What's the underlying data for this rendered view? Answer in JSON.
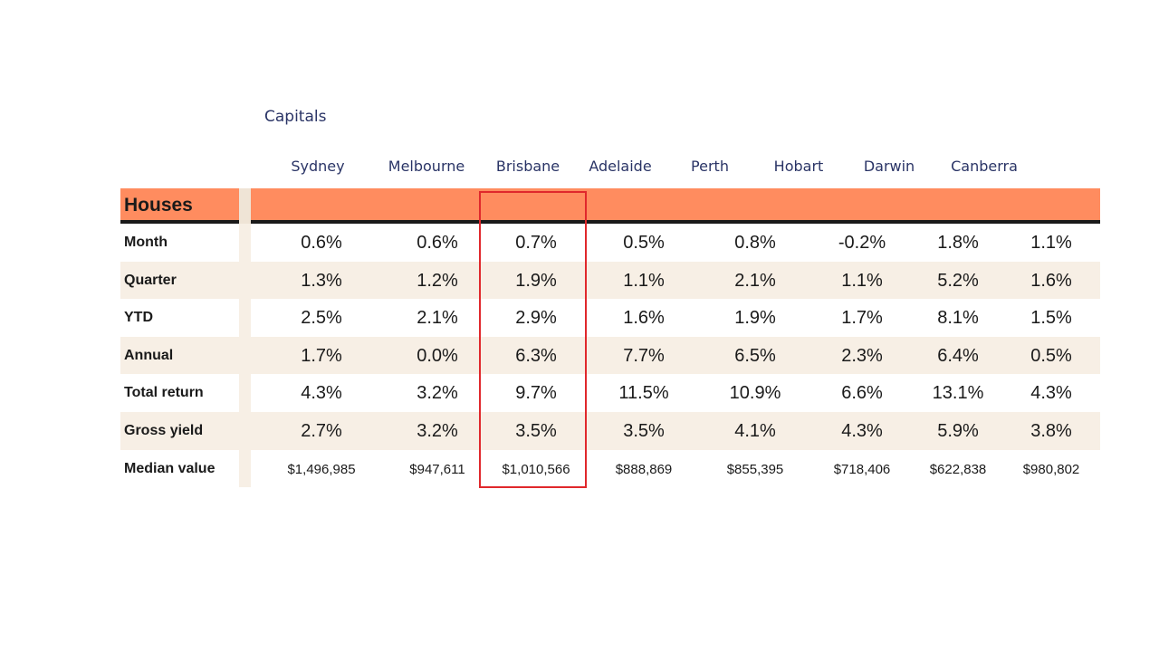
{
  "group_title": "Capitals",
  "section_label": "Houses",
  "chart_data": {
    "type": "table",
    "columns": [
      "Sydney",
      "Melbourne",
      "Brisbane",
      "Adelaide",
      "Perth",
      "Hobart",
      "Darwin",
      "Canberra"
    ],
    "rows": [
      {
        "label": "Month",
        "values": [
          "0.6%",
          "0.6%",
          "0.7%",
          "0.5%",
          "0.8%",
          "-0.2%",
          "1.8%",
          "1.1%"
        ]
      },
      {
        "label": "Quarter",
        "values": [
          "1.3%",
          "1.2%",
          "1.9%",
          "1.1%",
          "2.1%",
          "1.1%",
          "5.2%",
          "1.6%"
        ]
      },
      {
        "label": "YTD",
        "values": [
          "2.5%",
          "2.1%",
          "2.9%",
          "1.6%",
          "1.9%",
          "1.7%",
          "8.1%",
          "1.5%"
        ]
      },
      {
        "label": "Annual",
        "values": [
          "1.7%",
          "0.0%",
          "6.3%",
          "7.7%",
          "6.5%",
          "2.3%",
          "6.4%",
          "0.5%"
        ]
      },
      {
        "label": "Total return",
        "values": [
          "4.3%",
          "3.2%",
          "9.7%",
          "11.5%",
          "10.9%",
          "6.6%",
          "13.1%",
          "4.3%"
        ]
      },
      {
        "label": "Gross yield",
        "values": [
          "2.7%",
          "3.2%",
          "3.5%",
          "3.5%",
          "4.1%",
          "4.3%",
          "5.9%",
          "3.8%"
        ]
      },
      {
        "label": "Median value",
        "values": [
          "$1,496,985",
          "$947,611",
          "$1,010,566",
          "$888,869",
          "$855,395",
          "$718,406",
          "$622,838",
          "$980,802"
        ]
      }
    ],
    "highlighted_column": "Brisbane"
  },
  "colors": {
    "band": "#ff8c5f",
    "stripe": "#f7efe5",
    "header_text": "#2a3466",
    "highlight": "#e0282c"
  }
}
